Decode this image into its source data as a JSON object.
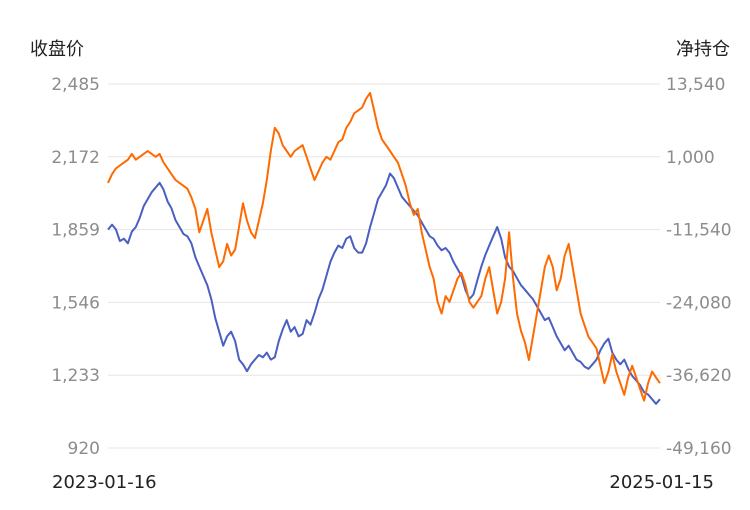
{
  "chart_data": {
    "type": "line",
    "y_left_label": "收盘价",
    "y_right_label": "净持仓",
    "y_left_ticks": [
      "2,485",
      "2,172",
      "1,859",
      "1,546",
      "1,233",
      "920"
    ],
    "y_right_ticks": [
      "13,540",
      "1,000",
      "-11,540",
      "-24,080",
      "-36,620",
      "-49,160"
    ],
    "y_left_range": [
      920,
      2485
    ],
    "y_right_range": [
      -49160,
      13540
    ],
    "x_start_label": "2023-01-16",
    "x_end_label": "2025-01-15",
    "grid": true,
    "colors": {
      "close": "#4a5fc1",
      "position": "#ff6a00"
    },
    "series": [
      {
        "key": "close",
        "axis": "left",
        "values": [
          1859,
          1880,
          1860,
          1810,
          1820,
          1800,
          1850,
          1870,
          1910,
          1960,
          1990,
          2020,
          2040,
          2060,
          2030,
          1980,
          1950,
          1900,
          1870,
          1840,
          1830,
          1800,
          1740,
          1700,
          1660,
          1620,
          1560,
          1480,
          1420,
          1360,
          1400,
          1420,
          1380,
          1300,
          1280,
          1250,
          1280,
          1300,
          1320,
          1310,
          1330,
          1300,
          1310,
          1380,
          1430,
          1470,
          1420,
          1440,
          1400,
          1410,
          1470,
          1450,
          1500,
          1560,
          1600,
          1660,
          1720,
          1760,
          1790,
          1780,
          1820,
          1830,
          1780,
          1760,
          1760,
          1800,
          1870,
          1930,
          1990,
          2020,
          2050,
          2100,
          2080,
          2040,
          2000,
          1980,
          1960,
          1940,
          1920,
          1890,
          1860,
          1830,
          1820,
          1790,
          1770,
          1780,
          1760,
          1720,
          1690,
          1660,
          1600,
          1560,
          1580,
          1640,
          1700,
          1750,
          1790,
          1830,
          1870,
          1820,
          1740,
          1700,
          1680,
          1650,
          1620,
          1600,
          1580,
          1560,
          1530,
          1500,
          1470,
          1480,
          1440,
          1400,
          1370,
          1340,
          1360,
          1330,
          1300,
          1290,
          1270,
          1260,
          1280,
          1300,
          1340,
          1370,
          1390,
          1330,
          1300,
          1280,
          1300,
          1260,
          1230,
          1210,
          1190,
          1160,
          1150,
          1130,
          1110,
          1130
        ]
      },
      {
        "key": "position",
        "axis": "right",
        "values": [
          -3500,
          -2000,
          -1000,
          -500,
          0,
          500,
          1500,
          500,
          1000,
          1500,
          2000,
          1500,
          1000,
          1500,
          0,
          -1000,
          -2000,
          -3000,
          -3500,
          -4000,
          -4500,
          -6000,
          -8000,
          -12000,
          -10000,
          -8000,
          -12000,
          -15000,
          -18000,
          -17000,
          -14000,
          -16000,
          -15000,
          -11000,
          -7000,
          -10000,
          -12000,
          -13000,
          -10000,
          -7000,
          -3000,
          2000,
          6000,
          5000,
          3000,
          2000,
          1000,
          2000,
          2500,
          3000,
          1000,
          -1000,
          -3000,
          -1500,
          0,
          1000,
          500,
          2000,
          3500,
          4000,
          6000,
          7000,
          8500,
          9000,
          9500,
          11000,
          12000,
          9000,
          6000,
          4000,
          3000,
          2000,
          1000,
          0,
          -2000,
          -4000,
          -7000,
          -9000,
          -8000,
          -12000,
          -15000,
          -18000,
          -20000,
          -24000,
          -26000,
          -23000,
          -24000,
          -22000,
          -20000,
          -19000,
          -21000,
          -24000,
          -25000,
          -24000,
          -23000,
          -20000,
          -18000,
          -22000,
          -26000,
          -24000,
          -20000,
          -12000,
          -20000,
          -26000,
          -29000,
          -31000,
          -34000,
          -30000,
          -26000,
          -22000,
          -18000,
          -16000,
          -18000,
          -22000,
          -20000,
          -16000,
          -14000,
          -18000,
          -22000,
          -26000,
          -28000,
          -30000,
          -31000,
          -32000,
          -35000,
          -38000,
          -36000,
          -33000,
          -36000,
          -38000,
          -40000,
          -37000,
          -35000,
          -37000,
          -39000,
          -41000,
          -38000,
          -36000,
          -37000,
          -38000
        ]
      }
    ]
  }
}
